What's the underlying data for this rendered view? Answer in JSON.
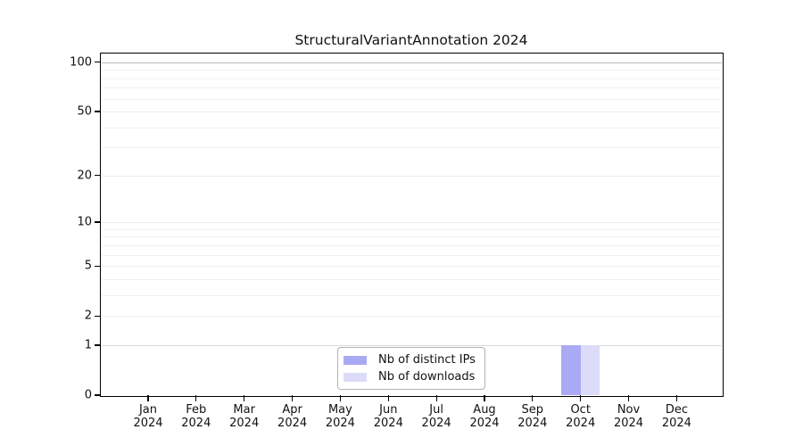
{
  "chart_data": {
    "type": "bar",
    "title": "StructuralVariantAnnotation 2024",
    "year": "2024",
    "categories": [
      "Jan",
      "Feb",
      "Mar",
      "Apr",
      "May",
      "Jun",
      "Jul",
      "Aug",
      "Sep",
      "Oct",
      "Nov",
      "Dec"
    ],
    "series": [
      {
        "name": "Nb of distinct IPs",
        "color": "#aaaaf4",
        "values": [
          0,
          0,
          0,
          0,
          0,
          0,
          0,
          0,
          0,
          1,
          0,
          0
        ]
      },
      {
        "name": "Nb of downloads",
        "color": "#dcdcf8",
        "values": [
          0,
          0,
          0,
          0,
          0,
          0,
          0,
          0,
          0,
          1,
          0,
          0
        ]
      }
    ],
    "y_scale": "log1p",
    "y_tick_values": [
      0,
      1,
      2,
      5,
      10,
      20,
      50,
      100
    ],
    "y_minor_gridlines": [
      3,
      4,
      6,
      7,
      8,
      9,
      30,
      40,
      60,
      70,
      80,
      90
    ],
    "ylim": [
      0,
      113
    ],
    "grid": true,
    "legend_position": "lower center",
    "style": {
      "background": "#ffffff",
      "axis_color": "#000000",
      "text_color": "#111111",
      "grid_major_color": "#ececec",
      "grid_minor_color": "#f0f0f0",
      "grid_top_color": "#b8b8b8",
      "legend_border_color": "#b3b3b3"
    }
  }
}
